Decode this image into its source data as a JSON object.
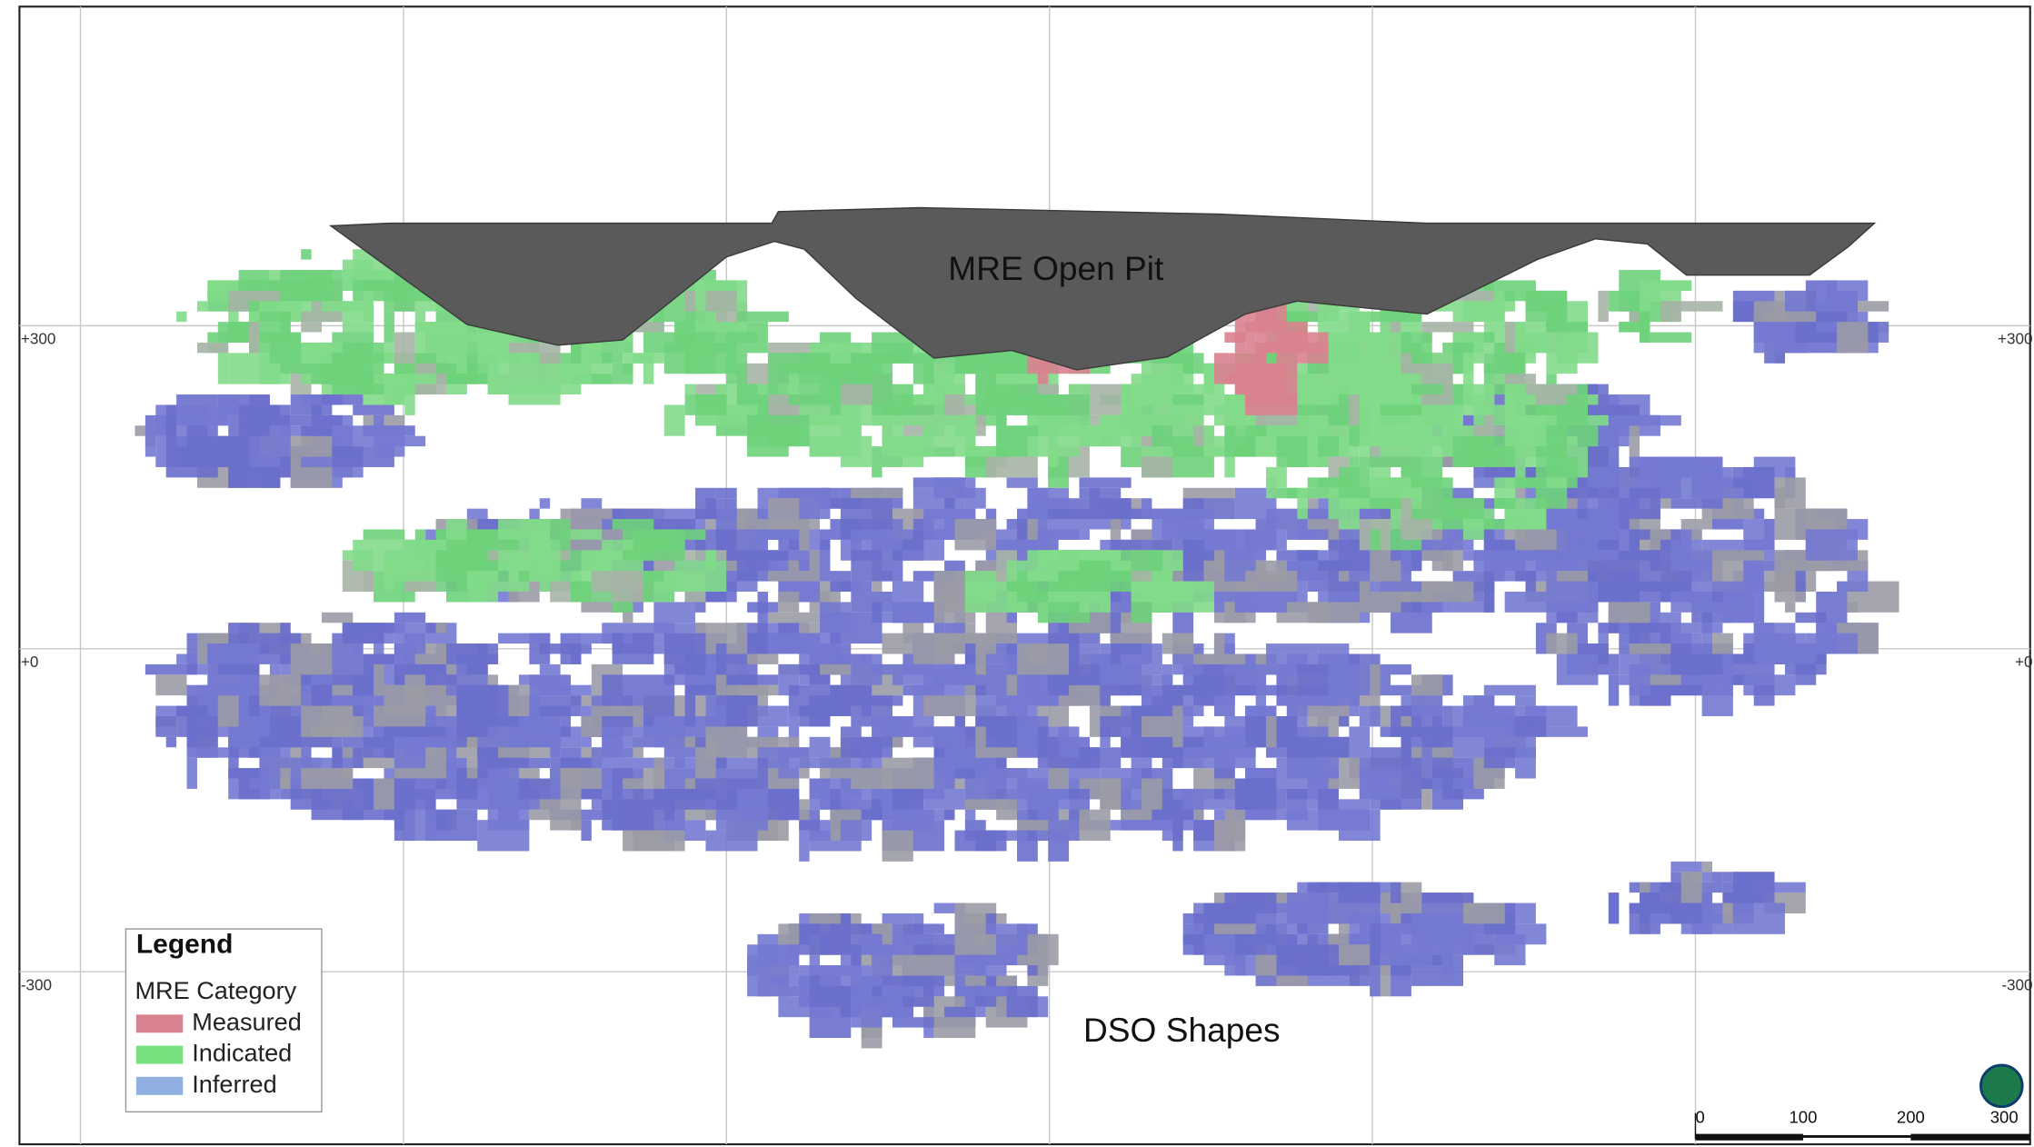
{
  "axis_labels": {
    "left": [
      "+300",
      "+0",
      "-300"
    ],
    "right": [
      "+300",
      "+0",
      "-300"
    ]
  },
  "annotations": [
    "MRE Open Pit",
    "DSO Shapes"
  ],
  "legend": {
    "title": "Legend",
    "subtitle": "MRE Category",
    "items": [
      {
        "label": "Measured",
        "color": "#d9828f"
      },
      {
        "label": "Indicated",
        "color": "#77e07f"
      },
      {
        "label": "Inferred",
        "color": "#8fb0e0"
      }
    ]
  },
  "scale_bar": {
    "labels": [
      "0",
      "100",
      "200",
      "300"
    ]
  }
}
